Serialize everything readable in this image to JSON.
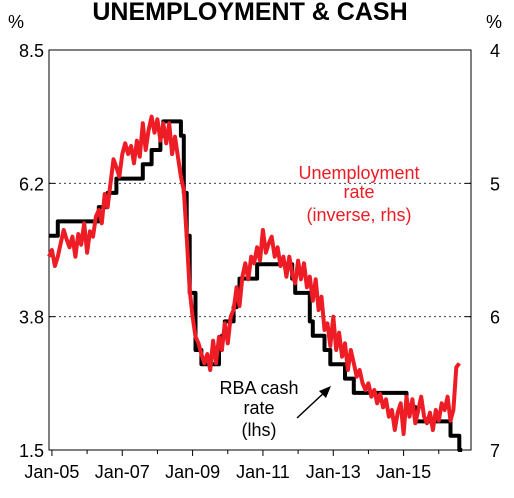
{
  "chart_data": {
    "type": "line",
    "title": "UNEMPLOYMENT & CASH",
    "left_axis_unit": "%",
    "right_axis_unit": "%",
    "x_ticks": [
      "Jan-05",
      "Jan-07",
      "Jan-09",
      "Jan-11",
      "Jan-13",
      "Jan-15"
    ],
    "x_range": [
      "2004-12",
      "2016-12"
    ],
    "left_axis": {
      "ticks": [
        "8.5",
        "6.2",
        "3.8",
        "1.5"
      ],
      "range": [
        1.5,
        8.5
      ]
    },
    "right_axis": {
      "ticks": [
        "4",
        "5",
        "6",
        "7"
      ],
      "range": [
        4,
        7
      ],
      "inverted": true
    },
    "grid": "horizontal dashed",
    "series": [
      {
        "name": "RBA cash rate (lhs)",
        "axis": "left",
        "color": "#000000",
        "points": [
          [
            "2004-12",
            5.25
          ],
          [
            "2005-03",
            5.5
          ],
          [
            "2006-05",
            5.75
          ],
          [
            "2006-08",
            6.0
          ],
          [
            "2006-11",
            6.25
          ],
          [
            "2007-08",
            6.5
          ],
          [
            "2007-11",
            6.75
          ],
          [
            "2008-02",
            7.0
          ],
          [
            "2008-03",
            7.25
          ],
          [
            "2008-09",
            7.0
          ],
          [
            "2008-10",
            6.0
          ],
          [
            "2008-11",
            5.25
          ],
          [
            "2008-12",
            4.25
          ],
          [
            "2009-02",
            3.25
          ],
          [
            "2009-04",
            3.0
          ],
          [
            "2009-10",
            3.25
          ],
          [
            "2009-11",
            3.5
          ],
          [
            "2009-12",
            3.75
          ],
          [
            "2010-03",
            4.0
          ],
          [
            "2010-04",
            4.25
          ],
          [
            "2010-05",
            4.5
          ],
          [
            "2010-11",
            4.75
          ],
          [
            "2011-11",
            4.5
          ],
          [
            "2011-12",
            4.25
          ],
          [
            "2012-05",
            3.75
          ],
          [
            "2012-06",
            3.5
          ],
          [
            "2012-10",
            3.25
          ],
          [
            "2012-12",
            3.0
          ],
          [
            "2013-05",
            2.75
          ],
          [
            "2013-08",
            2.5
          ],
          [
            "2015-02",
            2.25
          ],
          [
            "2015-05",
            2.0
          ],
          [
            "2016-05",
            1.75
          ],
          [
            "2016-08",
            1.5
          ],
          [
            "2016-09",
            1.5
          ]
        ]
      },
      {
        "name": "Unemployment rate (inverse, rhs)",
        "axis": "right",
        "color": "#ee1c24",
        "points": [
          [
            "2004-12",
            5.55
          ],
          [
            "2005-01",
            5.5
          ],
          [
            "2005-02",
            5.62
          ],
          [
            "2005-03",
            5.55
          ],
          [
            "2005-04",
            5.45
          ],
          [
            "2005-05",
            5.35
          ],
          [
            "2005-06",
            5.42
          ],
          [
            "2005-07",
            5.48
          ],
          [
            "2005-08",
            5.4
          ],
          [
            "2005-09",
            5.55
          ],
          [
            "2005-10",
            5.38
          ],
          [
            "2005-11",
            5.46
          ],
          [
            "2005-12",
            5.3
          ],
          [
            "2006-01",
            5.52
          ],
          [
            "2006-02",
            5.36
          ],
          [
            "2006-03",
            5.4
          ],
          [
            "2006-04",
            5.25
          ],
          [
            "2006-05",
            5.2
          ],
          [
            "2006-06",
            5.3
          ],
          [
            "2006-07",
            5.08
          ],
          [
            "2006-08",
            5.18
          ],
          [
            "2006-09",
            5.0
          ],
          [
            "2006-10",
            4.82
          ],
          [
            "2006-11",
            4.88
          ],
          [
            "2006-12",
            4.95
          ],
          [
            "2007-01",
            4.78
          ],
          [
            "2007-02",
            4.7
          ],
          [
            "2007-03",
            4.78
          ],
          [
            "2007-04",
            4.72
          ],
          [
            "2007-05",
            4.85
          ],
          [
            "2007-06",
            4.68
          ],
          [
            "2007-07",
            4.8
          ],
          [
            "2007-08",
            4.55
          ],
          [
            "2007-09",
            4.75
          ],
          [
            "2007-10",
            4.6
          ],
          [
            "2007-11",
            4.5
          ],
          [
            "2007-12",
            4.62
          ],
          [
            "2008-01",
            4.52
          ],
          [
            "2008-02",
            4.68
          ],
          [
            "2008-03",
            4.55
          ],
          [
            "2008-04",
            4.7
          ],
          [
            "2008-05",
            4.55
          ],
          [
            "2008-06",
            4.78
          ],
          [
            "2008-07",
            4.65
          ],
          [
            "2008-08",
            4.8
          ],
          [
            "2008-09",
            4.95
          ],
          [
            "2008-10",
            5.05
          ],
          [
            "2008-11",
            5.4
          ],
          [
            "2008-12",
            5.8
          ],
          [
            "2009-01",
            6.0
          ],
          [
            "2009-02",
            6.15
          ],
          [
            "2009-03",
            6.2
          ],
          [
            "2009-04",
            6.28
          ],
          [
            "2009-05",
            6.35
          ],
          [
            "2009-06",
            6.28
          ],
          [
            "2009-07",
            6.4
          ],
          [
            "2009-08",
            6.18
          ],
          [
            "2009-09",
            6.35
          ],
          [
            "2009-10",
            6.15
          ],
          [
            "2009-11",
            6.25
          ],
          [
            "2009-12",
            6.05
          ],
          [
            "2010-01",
            6.2
          ],
          [
            "2010-02",
            6.0
          ],
          [
            "2010-03",
            5.95
          ],
          [
            "2010-04",
            5.78
          ],
          [
            "2010-05",
            5.92
          ],
          [
            "2010-06",
            5.7
          ],
          [
            "2010-07",
            5.6
          ],
          [
            "2010-08",
            5.72
          ],
          [
            "2010-09",
            5.55
          ],
          [
            "2010-10",
            5.6
          ],
          [
            "2010-11",
            5.48
          ],
          [
            "2010-12",
            5.58
          ],
          [
            "2011-01",
            5.35
          ],
          [
            "2011-02",
            5.52
          ],
          [
            "2011-03",
            5.45
          ],
          [
            "2011-04",
            5.4
          ],
          [
            "2011-05",
            5.55
          ],
          [
            "2011-06",
            5.48
          ],
          [
            "2011-07",
            5.62
          ],
          [
            "2011-08",
            5.55
          ],
          [
            "2011-09",
            5.7
          ],
          [
            "2011-10",
            5.55
          ],
          [
            "2011-11",
            5.68
          ],
          [
            "2011-12",
            5.75
          ],
          [
            "2012-01",
            5.58
          ],
          [
            "2012-02",
            5.72
          ],
          [
            "2012-03",
            5.6
          ],
          [
            "2012-04",
            5.78
          ],
          [
            "2012-05",
            5.7
          ],
          [
            "2012-06",
            5.88
          ],
          [
            "2012-07",
            5.72
          ],
          [
            "2012-08",
            5.95
          ],
          [
            "2012-09",
            5.85
          ],
          [
            "2012-10",
            6.1
          ],
          [
            "2012-11",
            6.05
          ],
          [
            "2012-12",
            6.22
          ],
          [
            "2013-01",
            6.0
          ],
          [
            "2013-02",
            6.25
          ],
          [
            "2013-03",
            6.12
          ],
          [
            "2013-04",
            6.3
          ],
          [
            "2013-05",
            6.2
          ],
          [
            "2013-06",
            6.4
          ],
          [
            "2013-07",
            6.25
          ],
          [
            "2013-08",
            6.35
          ],
          [
            "2013-09",
            6.45
          ],
          [
            "2013-10",
            6.4
          ],
          [
            "2013-11",
            6.5
          ],
          [
            "2013-12",
            6.55
          ],
          [
            "2014-01",
            6.5
          ],
          [
            "2014-02",
            6.6
          ],
          [
            "2014-03",
            6.55
          ],
          [
            "2014-04",
            6.65
          ],
          [
            "2014-05",
            6.58
          ],
          [
            "2014-06",
            6.68
          ],
          [
            "2014-07",
            6.62
          ],
          [
            "2014-08",
            6.75
          ],
          [
            "2014-09",
            6.7
          ],
          [
            "2014-10",
            6.85
          ],
          [
            "2014-11",
            6.72
          ],
          [
            "2014-12",
            6.65
          ],
          [
            "2015-01",
            6.88
          ],
          [
            "2015-02",
            6.6
          ],
          [
            "2015-03",
            6.75
          ],
          [
            "2015-04",
            6.62
          ],
          [
            "2015-05",
            6.8
          ],
          [
            "2015-06",
            6.7
          ],
          [
            "2015-07",
            6.6
          ],
          [
            "2015-08",
            6.75
          ],
          [
            "2015-09",
            6.8
          ],
          [
            "2015-10",
            6.72
          ],
          [
            "2015-11",
            6.85
          ],
          [
            "2015-12",
            6.7
          ],
          [
            "2016-01",
            6.78
          ],
          [
            "2016-02",
            6.65
          ],
          [
            "2016-03",
            6.7
          ],
          [
            "2016-04",
            6.6
          ],
          [
            "2016-05",
            6.78
          ],
          [
            "2016-06",
            6.7
          ],
          [
            "2016-07",
            6.38
          ],
          [
            "2016-08",
            6.35
          ]
        ]
      }
    ],
    "annotations": {
      "unemployment": [
        "Unemployment",
        "rate",
        "(inverse, rhs)"
      ],
      "cash": [
        "RBA cash",
        "rate",
        "(lhs)"
      ]
    }
  }
}
